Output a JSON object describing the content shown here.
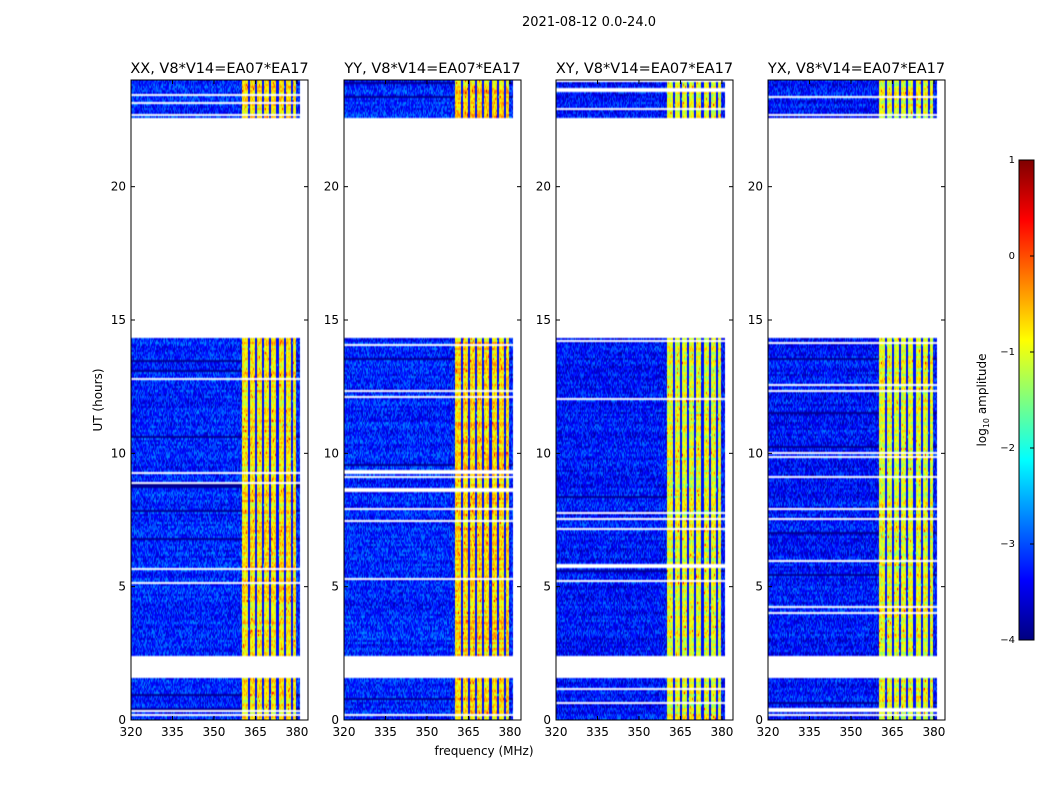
{
  "figure": {
    "suptitle": "2021-08-12 0.0-24.0",
    "xlabel": "frequency (MHz)",
    "ylabel": "UT (hours)"
  },
  "colorbar": {
    "label_prefix": "log",
    "label_sub": "10",
    "label_suffix": " amplitude",
    "ticks": [
      1,
      0,
      -1,
      -2,
      -3,
      -4
    ],
    "tick_labels": [
      "1",
      "0",
      "−1",
      "−2",
      "−3",
      "−4"
    ],
    "range": [
      -4,
      1
    ],
    "colormap": "jet",
    "colors": [
      "#00007f",
      "#0000ff",
      "#007fff",
      "#00ffff",
      "#7fff7f",
      "#ffff00",
      "#ff7f00",
      "#ff0000",
      "#7f0000"
    ]
  },
  "chart_data": [
    {
      "type": "heatmap",
      "title": "XX, V8*V14=EA07*EA17",
      "xlim": [
        320,
        384
      ],
      "ylim": [
        0,
        24
      ],
      "xticks": [
        320,
        335,
        350,
        365,
        380
      ],
      "yticks": [
        0,
        5,
        10,
        15,
        20
      ],
      "rfi_band_mhz": [
        360,
        379.5
      ],
      "rfi_level_log10": -0.8,
      "background_level_log10": -3.2,
      "data_blocks_ut": [
        [
          0,
          1.55
        ],
        [
          2.4,
          14.35
        ],
        [
          22.6,
          24
        ]
      ],
      "blank_ut": [
        [
          1.55,
          2.4
        ],
        [
          14.35,
          22.6
        ]
      ]
    },
    {
      "type": "heatmap",
      "title": "YY, V8*V14=EA07*EA17",
      "xlim": [
        320,
        384
      ],
      "ylim": [
        0,
        24
      ],
      "xticks": [
        320,
        335,
        350,
        365,
        380
      ],
      "yticks": [
        0,
        5,
        10,
        15,
        20
      ],
      "rfi_band_mhz": [
        360,
        379.5
      ],
      "rfi_level_log10": -0.7,
      "background_level_log10": -3.2,
      "data_blocks_ut": [
        [
          0,
          1.55
        ],
        [
          2.4,
          14.35
        ],
        [
          22.6,
          24
        ]
      ],
      "blank_ut": [
        [
          1.55,
          2.4
        ],
        [
          14.35,
          22.6
        ]
      ]
    },
    {
      "type": "heatmap",
      "title": "XY, V8*V14=EA07*EA17",
      "xlim": [
        320,
        384
      ],
      "ylim": [
        0,
        24
      ],
      "xticks": [
        320,
        335,
        350,
        365,
        380
      ],
      "yticks": [
        0,
        5,
        10,
        15,
        20
      ],
      "rfi_band_mhz": [
        360,
        379.5
      ],
      "rfi_level_log10": -1.0,
      "background_level_log10": -3.3,
      "data_blocks_ut": [
        [
          0,
          1.55
        ],
        [
          2.4,
          14.35
        ],
        [
          22.6,
          24
        ]
      ],
      "blank_ut": [
        [
          1.55,
          2.4
        ],
        [
          14.35,
          22.6
        ]
      ]
    },
    {
      "type": "heatmap",
      "title": "YX, V8*V14=EA07*EA17",
      "xlim": [
        320,
        384
      ],
      "ylim": [
        0,
        24
      ],
      "xticks": [
        320,
        335,
        350,
        365,
        380
      ],
      "yticks": [
        0,
        5,
        10,
        15,
        20
      ],
      "rfi_band_mhz": [
        360,
        379.5
      ],
      "rfi_level_log10": -1.0,
      "background_level_log10": -3.3,
      "data_blocks_ut": [
        [
          0,
          1.55
        ],
        [
          2.4,
          14.35
        ],
        [
          22.6,
          24
        ]
      ],
      "blank_ut": [
        [
          1.55,
          2.4
        ],
        [
          14.35,
          22.6
        ]
      ]
    }
  ]
}
